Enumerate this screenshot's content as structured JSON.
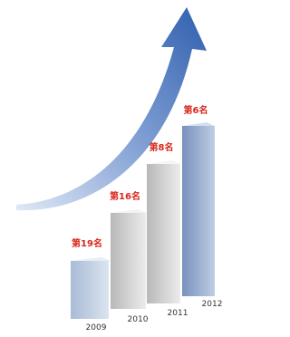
{
  "bars": [
    {
      "year": "2009",
      "label": "第19名"
    },
    {
      "year": "2010",
      "label": "第16名"
    },
    {
      "year": "2011",
      "label": "第8名"
    },
    {
      "year": "2012",
      "label": "第6名"
    }
  ]
}
